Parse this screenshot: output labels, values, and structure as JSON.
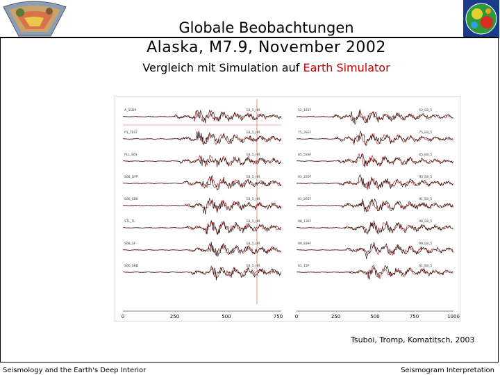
{
  "header": {
    "title_line1": "Globale Beobachtungen",
    "title_line2": "Alaska, M7.9, November 2002",
    "subtitle_prefix": "Vergleich mit Simulation auf ",
    "subtitle_highlight": "Earth Simulator"
  },
  "colors": {
    "accent": "#c00000",
    "synthetic_trace": "#b00000",
    "observed_trace": "#000000"
  },
  "figure": {
    "left_panel": {
      "ticks": [
        "0",
        "250",
        "500",
        "750"
      ],
      "left_labels": [
        "A_SSDP",
        "P1_TEST",
        "PLL_S01",
        "S08_OFP",
        "S06_SBH",
        "STL_TL",
        "S08_SF",
        "S06_SRD"
      ],
      "right_labels": [
        "E8_5_HR",
        "E8_5_HR",
        "E8_5_HR",
        "E8_5_HR",
        "E8_5_HR",
        "E8_5_HR",
        "E8_5_HR",
        "E8_5_HR"
      ]
    },
    "right_panel": {
      "ticks": [
        "0",
        "250",
        "500",
        "750",
        "1000"
      ],
      "left_labels": [
        "52_181F",
        "75_3SEF",
        "85_5SSF",
        "93_220F",
        "91_265F",
        "98_136F",
        "99_839F",
        "61_15F"
      ],
      "right_labels": [
        "52_E8_5",
        "75_E8_5",
        "85_E8_5",
        "93_E8_5",
        "91_E8_5",
        "98_E8_5",
        "99_E8_5",
        "61_E8_5"
      ]
    }
  },
  "credit": "Tsuboi, Tromp, Komatitsch, 2003",
  "footer": {
    "left": "Seismology and the Earth's Deep Interior",
    "right": "Seismogram Interpretation"
  }
}
